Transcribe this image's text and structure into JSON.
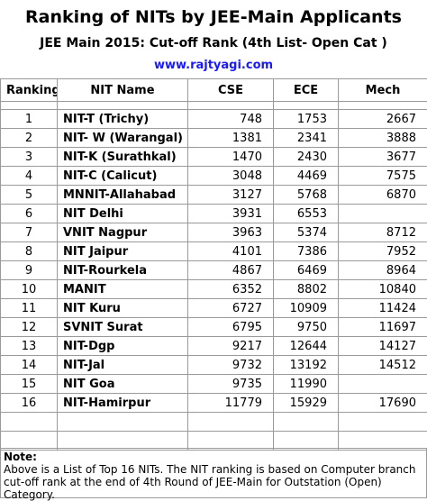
{
  "title": "Ranking of NITs by JEE-Main Applicants",
  "subtitle": "JEE Main 2015:  Cut-off  Rank (4th List- Open Cat )",
  "website": "www.rajtyagi.com",
  "table": {
    "columns": [
      "Ranking",
      "NIT Name",
      "CSE",
      "ECE",
      "Mech"
    ],
    "rows": [
      [
        1,
        "NIT-T (Trichy)",
        748,
        1753,
        2667
      ],
      [
        2,
        "NIT- W (Warangal)",
        1381,
        2341,
        3888
      ],
      [
        3,
        "NIT-K (Surathkal)",
        1470,
        2430,
        3677
      ],
      [
        4,
        "NIT-C (Calicut)",
        3048,
        4469,
        7575
      ],
      [
        5,
        "MNNIT-Allahabad",
        3127,
        5768,
        6870
      ],
      [
        6,
        "NIT Delhi",
        3931,
        6553,
        null
      ],
      [
        7,
        "VNIT Nagpur",
        3963,
        5374,
        8712
      ],
      [
        8,
        "NIT Jaipur",
        4101,
        7386,
        7952
      ],
      [
        9,
        "NIT-Rourkela",
        4867,
        6469,
        8964
      ],
      [
        10,
        "MANIT",
        6352,
        8802,
        10840
      ],
      [
        11,
        "NIT Kuru",
        6727,
        10909,
        11424
      ],
      [
        12,
        "SVNIT Surat",
        6795,
        9750,
        11697
      ],
      [
        13,
        "NIT-Dgp",
        9217,
        12644,
        14127
      ],
      [
        14,
        "NIT-Jal",
        9732,
        13192,
        14512
      ],
      [
        15,
        "NIT Goa",
        9735,
        11990,
        null
      ],
      [
        16,
        "NIT-Hamirpur",
        11779,
        15929,
        17690
      ]
    ]
  },
  "note": {
    "label": "Note:",
    "text": "Above is a List of Top 16 NITs. The NIT ranking is based on Computer branch cut-off rank at the end of 4th Round of JEE-Main for Outstation (Open) Category."
  }
}
